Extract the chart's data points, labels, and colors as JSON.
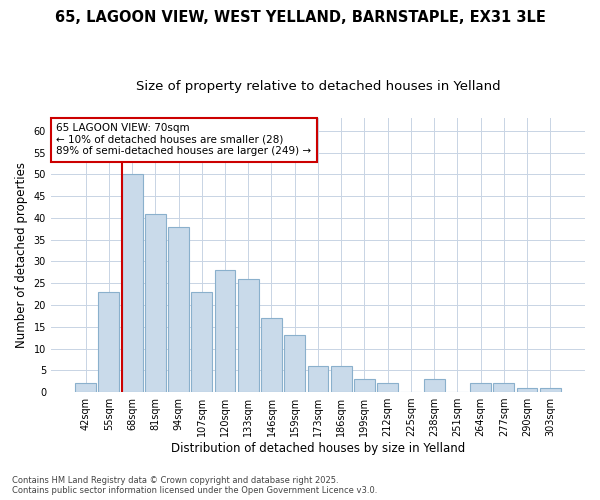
{
  "title_line1": "65, LAGOON VIEW, WEST YELLAND, BARNSTAPLE, EX31 3LE",
  "title_line2": "Size of property relative to detached houses in Yelland",
  "xlabel": "Distribution of detached houses by size in Yelland",
  "ylabel": "Number of detached properties",
  "categories": [
    "42sqm",
    "55sqm",
    "68sqm",
    "81sqm",
    "94sqm",
    "107sqm",
    "120sqm",
    "133sqm",
    "146sqm",
    "159sqm",
    "173sqm",
    "186sqm",
    "199sqm",
    "212sqm",
    "225sqm",
    "238sqm",
    "251sqm",
    "264sqm",
    "277sqm",
    "290sqm",
    "303sqm"
  ],
  "values": [
    2,
    23,
    50,
    41,
    38,
    23,
    28,
    26,
    17,
    13,
    6,
    6,
    3,
    2,
    0,
    3,
    0,
    2,
    2,
    1,
    1
  ],
  "bar_color": "#c9daea",
  "bar_edge_color": "#8ab0cc",
  "grid_color": "#c8d4e4",
  "background_color": "#ffffff",
  "vline_color": "#cc0000",
  "vline_index": 2,
  "annotation_text": "65 LAGOON VIEW: 70sqm\n← 10% of detached houses are smaller (28)\n89% of semi-detached houses are larger (249) →",
  "annotation_box_color": "#ffffff",
  "annotation_box_edge": "#cc0000",
  "ylim": [
    0,
    63
  ],
  "yticks": [
    0,
    5,
    10,
    15,
    20,
    25,
    30,
    35,
    40,
    45,
    50,
    55,
    60
  ],
  "footnote": "Contains HM Land Registry data © Crown copyright and database right 2025.\nContains public sector information licensed under the Open Government Licence v3.0.",
  "title_fontsize": 10.5,
  "subtitle_fontsize": 9.5,
  "tick_fontsize": 7,
  "label_fontsize": 8.5,
  "annot_fontsize": 7.5,
  "footnote_fontsize": 6
}
